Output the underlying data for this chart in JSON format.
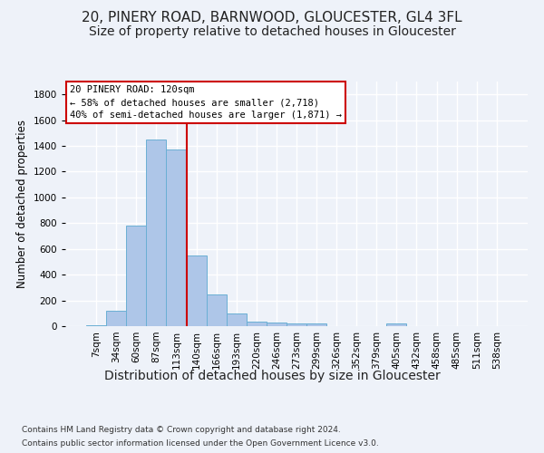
{
  "title1": "20, PINERY ROAD, BARNWOOD, GLOUCESTER, GL4 3FL",
  "title2": "Size of property relative to detached houses in Gloucester",
  "xlabel": "Distribution of detached houses by size in Gloucester",
  "ylabel": "Number of detached properties",
  "categories": [
    "7sqm",
    "34sqm",
    "60sqm",
    "87sqm",
    "113sqm",
    "140sqm",
    "166sqm",
    "193sqm",
    "220sqm",
    "246sqm",
    "273sqm",
    "299sqm",
    "326sqm",
    "352sqm",
    "379sqm",
    "405sqm",
    "432sqm",
    "458sqm",
    "485sqm",
    "511sqm",
    "538sqm"
  ],
  "values": [
    10,
    120,
    780,
    1450,
    1370,
    550,
    245,
    100,
    35,
    25,
    20,
    20,
    0,
    0,
    0,
    20,
    0,
    0,
    0,
    0,
    0
  ],
  "bar_color": "#aec6e8",
  "bar_edge_color": "#6aafd4",
  "property_line_x": 4.5,
  "property_line_color": "#cc0000",
  "ylim": [
    0,
    1900
  ],
  "yticks": [
    0,
    200,
    400,
    600,
    800,
    1000,
    1200,
    1400,
    1600,
    1800
  ],
  "annotation_title": "20 PINERY ROAD: 120sqm",
  "annotation_line1": "← 58% of detached houses are smaller (2,718)",
  "annotation_line2": "40% of semi-detached houses are larger (1,871) →",
  "annotation_box_color": "#ffffff",
  "annotation_box_edge": "#cc0000",
  "footer1": "Contains HM Land Registry data © Crown copyright and database right 2024.",
  "footer2": "Contains public sector information licensed under the Open Government Licence v3.0.",
  "background_color": "#eef2f9",
  "grid_color": "#ffffff",
  "title1_fontsize": 11,
  "title2_fontsize": 10,
  "xlabel_fontsize": 10,
  "ylabel_fontsize": 8.5,
  "tick_fontsize": 7.5,
  "annotation_fontsize": 7.5,
  "footer_fontsize": 6.5
}
